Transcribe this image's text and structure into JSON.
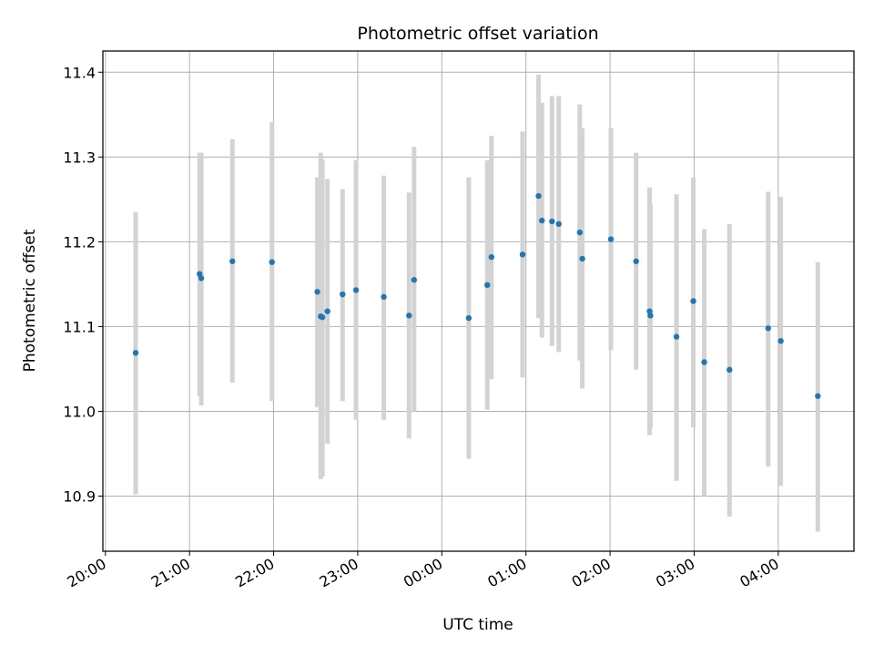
{
  "chart_data": {
    "type": "scatter",
    "title": "Photometric offset variation",
    "xlabel": "UTC time",
    "ylabel": "Photometric offset",
    "x_ticks": [
      "20:00",
      "21:00",
      "22:00",
      "23:00",
      "00:00",
      "01:00",
      "02:00",
      "03:00",
      "04:00"
    ],
    "x_tick_hours": [
      0,
      1,
      2,
      3,
      4,
      5,
      6,
      7,
      8
    ],
    "x_range_hours": [
      -0.03,
      8.9
    ],
    "y_ticks": [
      "10.9",
      "11.0",
      "11.1",
      "11.2",
      "11.3",
      "11.4"
    ],
    "y_tick_values": [
      10.9,
      11.0,
      11.1,
      11.2,
      11.3,
      11.4
    ],
    "ylim": [
      10.835,
      11.425
    ],
    "grid": true,
    "x_label_rotation_deg": 30,
    "colors": {
      "point": "#1f77b4",
      "errorbar": "#d3d3d3",
      "grid": "#b0b0b0"
    },
    "points_hours": [
      0.36,
      1.12,
      1.14,
      1.51,
      1.98,
      2.52,
      2.56,
      2.58,
      2.64,
      2.82,
      2.98,
      3.31,
      3.61,
      3.67,
      4.32,
      4.54,
      4.59,
      4.96,
      5.15,
      5.19,
      5.31,
      5.39,
      5.64,
      5.67,
      6.01,
      6.31,
      6.47,
      6.48,
      6.79,
      6.99,
      7.12,
      7.42,
      7.88,
      8.03,
      8.47
    ],
    "y": [
      11.069,
      11.162,
      11.157,
      11.177,
      11.176,
      11.141,
      11.112,
      11.111,
      11.118,
      11.138,
      11.143,
      11.135,
      11.113,
      11.155,
      11.11,
      11.149,
      11.182,
      11.185,
      11.254,
      11.225,
      11.224,
      11.221,
      11.211,
      11.18,
      11.203,
      11.177,
      11.118,
      11.113,
      11.088,
      11.13,
      11.058,
      11.049,
      11.098,
      11.083,
      11.018
    ],
    "yerr_low": [
      10.902,
      11.018,
      11.007,
      11.034,
      11.012,
      11.005,
      10.92,
      10.923,
      10.962,
      11.012,
      10.99,
      10.99,
      10.968,
      11.0,
      10.944,
      11.002,
      11.038,
      11.04,
      11.11,
      11.087,
      11.077,
      11.07,
      11.06,
      11.027,
      11.072,
      11.049,
      10.972,
      10.98,
      10.918,
      10.981,
      10.9,
      10.876,
      10.935,
      10.912,
      10.858
    ],
    "yerr_high": [
      11.235,
      11.305,
      11.305,
      11.321,
      11.341,
      11.276,
      11.305,
      11.297,
      11.274,
      11.262,
      11.296,
      11.278,
      11.258,
      11.312,
      11.276,
      11.296,
      11.325,
      11.33,
      11.397,
      11.364,
      11.372,
      11.372,
      11.362,
      11.334,
      11.334,
      11.305,
      11.264,
      11.245,
      11.256,
      11.276,
      11.215,
      11.221,
      11.259,
      11.253,
      11.176
    ]
  }
}
